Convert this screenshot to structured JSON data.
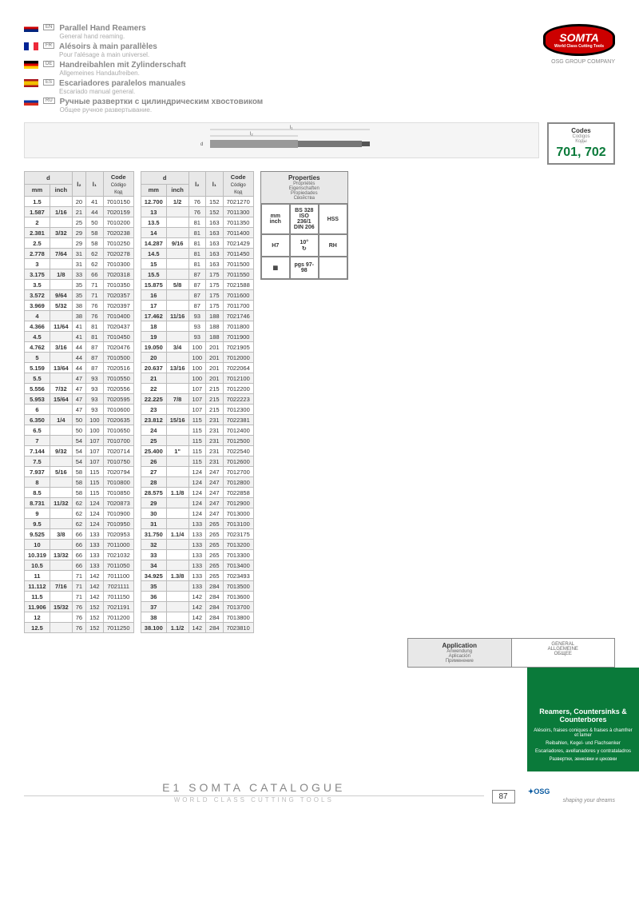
{
  "langs": [
    {
      "flag": "en",
      "code": "EN",
      "t1": "Parallel Hand Reamers",
      "t2": "General hand reaming."
    },
    {
      "flag": "fr",
      "code": "FR",
      "t1": "Alésoirs à main parallèles",
      "t2": "Pour l'alésage à main universel."
    },
    {
      "flag": "de",
      "code": "DE",
      "t1": "Handreibahlen mit Zylinderschaft",
      "t2": "Allgemeines Handaufreiben."
    },
    {
      "flag": "es",
      "code": "ES",
      "t1": "Escariadores paralelos manuales",
      "t2": "Escariado manual general."
    },
    {
      "flag": "ru",
      "code": "RU",
      "t1": "Ручные развертки с цилиндрическим хвостовиком",
      "t2": "Общее ручное развертывание."
    }
  ],
  "logo": {
    "name": "SOMTA",
    "sub": "World Class Cutting Tools",
    "osg": "OSG GROUP COMPANY"
  },
  "codes": {
    "lbl": "Codes",
    "subs": [
      "Codigos",
      "Коды"
    ],
    "val": "701, 702"
  },
  "thead": {
    "d": "d",
    "mm": "mm",
    "inch": "inch",
    "l2": "l₂",
    "l1": "l₁",
    "code": "Code",
    "code_subs": [
      "Código",
      "Код"
    ]
  },
  "table1": [
    [
      "1.5",
      "",
      "20",
      "41",
      "7010150"
    ],
    [
      "1.587",
      "1/16",
      "21",
      "44",
      "7020159"
    ],
    [
      "2",
      "",
      "25",
      "50",
      "7010200"
    ],
    [
      "2.381",
      "3/32",
      "29",
      "58",
      "7020238"
    ],
    [
      "2.5",
      "",
      "29",
      "58",
      "7010250"
    ],
    [
      "2.778",
      "7/64",
      "31",
      "62",
      "7020278"
    ],
    [
      "3",
      "",
      "31",
      "62",
      "7010300"
    ],
    [
      "3.175",
      "1/8",
      "33",
      "66",
      "7020318"
    ],
    [
      "3.5",
      "",
      "35",
      "71",
      "7010350"
    ],
    [
      "3.572",
      "9/64",
      "35",
      "71",
      "7020357"
    ],
    [
      "3.969",
      "5/32",
      "38",
      "76",
      "7020397"
    ],
    [
      "4",
      "",
      "38",
      "76",
      "7010400"
    ],
    [
      "4.366",
      "11/64",
      "41",
      "81",
      "7020437"
    ],
    [
      "4.5",
      "",
      "41",
      "81",
      "7010450"
    ],
    [
      "4.762",
      "3/16",
      "44",
      "87",
      "7020476"
    ],
    [
      "5",
      "",
      "44",
      "87",
      "7010500"
    ],
    [
      "5.159",
      "13/64",
      "44",
      "87",
      "7020516"
    ],
    [
      "5.5",
      "",
      "47",
      "93",
      "7010550"
    ],
    [
      "5.556",
      "7/32",
      "47",
      "93",
      "7020556"
    ],
    [
      "5.953",
      "15/64",
      "47",
      "93",
      "7020595"
    ],
    [
      "6",
      "",
      "47",
      "93",
      "7010600"
    ],
    [
      "6.350",
      "1/4",
      "50",
      "100",
      "7020635"
    ],
    [
      "6.5",
      "",
      "50",
      "100",
      "7010650"
    ],
    [
      "7",
      "",
      "54",
      "107",
      "7010700"
    ],
    [
      "7.144",
      "9/32",
      "54",
      "107",
      "7020714"
    ],
    [
      "7.5",
      "",
      "54",
      "107",
      "7010750"
    ],
    [
      "7.937",
      "5/16",
      "58",
      "115",
      "7020794"
    ],
    [
      "8",
      "",
      "58",
      "115",
      "7010800"
    ],
    [
      "8.5",
      "",
      "58",
      "115",
      "7010850"
    ],
    [
      "8.731",
      "11/32",
      "62",
      "124",
      "7020873"
    ],
    [
      "9",
      "",
      "62",
      "124",
      "7010900"
    ],
    [
      "9.5",
      "",
      "62",
      "124",
      "7010950"
    ],
    [
      "9.525",
      "3/8",
      "66",
      "133",
      "7020953"
    ],
    [
      "10",
      "",
      "66",
      "133",
      "7011000"
    ],
    [
      "10.319",
      "13/32",
      "66",
      "133",
      "7021032"
    ],
    [
      "10.5",
      "",
      "66",
      "133",
      "7011050"
    ],
    [
      "11",
      "",
      "71",
      "142",
      "7011100"
    ],
    [
      "11.112",
      "7/16",
      "71",
      "142",
      "7021111"
    ],
    [
      "11.5",
      "",
      "71",
      "142",
      "7011150"
    ],
    [
      "11.906",
      "15/32",
      "76",
      "152",
      "7021191"
    ],
    [
      "12",
      "",
      "76",
      "152",
      "7011200"
    ],
    [
      "12.5",
      "",
      "76",
      "152",
      "7011250"
    ]
  ],
  "table2": [
    [
      "12.700",
      "1/2",
      "76",
      "152",
      "7021270"
    ],
    [
      "13",
      "",
      "76",
      "152",
      "7011300"
    ],
    [
      "13.5",
      "",
      "81",
      "163",
      "7011350"
    ],
    [
      "14",
      "",
      "81",
      "163",
      "7011400"
    ],
    [
      "14.287",
      "9/16",
      "81",
      "163",
      "7021429"
    ],
    [
      "14.5",
      "",
      "81",
      "163",
      "7011450"
    ],
    [
      "15",
      "",
      "81",
      "163",
      "7011500"
    ],
    [
      "15.5",
      "",
      "87",
      "175",
      "7011550"
    ],
    [
      "15.875",
      "5/8",
      "87",
      "175",
      "7021588"
    ],
    [
      "16",
      "",
      "87",
      "175",
      "7011600"
    ],
    [
      "17",
      "",
      "87",
      "175",
      "7011700"
    ],
    [
      "17.462",
      "11/16",
      "93",
      "188",
      "7021746"
    ],
    [
      "18",
      "",
      "93",
      "188",
      "7011800"
    ],
    [
      "19",
      "",
      "93",
      "188",
      "7011900"
    ],
    [
      "19.050",
      "3/4",
      "100",
      "201",
      "7021905"
    ],
    [
      "20",
      "",
      "100",
      "201",
      "7012000"
    ],
    [
      "20.637",
      "13/16",
      "100",
      "201",
      "7022064"
    ],
    [
      "21",
      "",
      "100",
      "201",
      "7012100"
    ],
    [
      "22",
      "",
      "107",
      "215",
      "7012200"
    ],
    [
      "22.225",
      "7/8",
      "107",
      "215",
      "7022223"
    ],
    [
      "23",
      "",
      "107",
      "215",
      "7012300"
    ],
    [
      "23.812",
      "15/16",
      "115",
      "231",
      "7022381"
    ],
    [
      "24",
      "",
      "115",
      "231",
      "7012400"
    ],
    [
      "25",
      "",
      "115",
      "231",
      "7012500"
    ],
    [
      "25.400",
      "1\"",
      "115",
      "231",
      "7022540"
    ],
    [
      "26",
      "",
      "115",
      "231",
      "7012600"
    ],
    [
      "27",
      "",
      "124",
      "247",
      "7012700"
    ],
    [
      "28",
      "",
      "124",
      "247",
      "7012800"
    ],
    [
      "28.575",
      "1.1/8",
      "124",
      "247",
      "7022858"
    ],
    [
      "29",
      "",
      "124",
      "247",
      "7012900"
    ],
    [
      "30",
      "",
      "124",
      "247",
      "7013000"
    ],
    [
      "31",
      "",
      "133",
      "265",
      "7013100"
    ],
    [
      "31.750",
      "1.1/4",
      "133",
      "265",
      "7023175"
    ],
    [
      "32",
      "",
      "133",
      "265",
      "7013200"
    ],
    [
      "33",
      "",
      "133",
      "265",
      "7013300"
    ],
    [
      "34",
      "",
      "133",
      "265",
      "7013400"
    ],
    [
      "34.925",
      "1.3/8",
      "133",
      "265",
      "7023493"
    ],
    [
      "35",
      "",
      "133",
      "284",
      "7013500"
    ],
    [
      "36",
      "",
      "142",
      "284",
      "7013600"
    ],
    [
      "37",
      "",
      "142",
      "284",
      "7013700"
    ],
    [
      "38",
      "",
      "142",
      "284",
      "7013800"
    ],
    [
      "38.100",
      "1.1/2",
      "142",
      "284",
      "7023810"
    ]
  ],
  "props": {
    "hdr": "Properties",
    "subs": [
      "Propriétés",
      "Eigenschaften",
      "Propiedades",
      "Свойства"
    ],
    "cells": [
      [
        "mm",
        "inch"
      ],
      [
        "BS 328",
        "ISO",
        "236/1",
        "DIN 206"
      ],
      [
        "HSS"
      ],
      [
        "H7"
      ],
      [
        "10°",
        "↻"
      ],
      [
        "RH"
      ],
      [
        "▦"
      ],
      [
        "pgs 97-98"
      ],
      [
        ""
      ]
    ]
  },
  "app": {
    "lbl": "Application",
    "subs": [
      "Anwendung",
      "Aplicación",
      "Применение"
    ],
    "val": [
      "GENERAL",
      "ALLGEMEINE",
      "ОБЩЕЕ"
    ]
  },
  "footer": {
    "c1": "E1 SOMTA CATALOGUE",
    "c2": "WORLD CLASS CUTTING TOOLS",
    "page": "87",
    "tag": "shaping your dreams"
  },
  "banner": {
    "t": "Reamers, Countersinks & Counterbores",
    "s": [
      "Alésoirs, fraises coniques & fraises à chamfrer et lamer",
      "Reibahlen, Kegel- und Flachsenker",
      "Escariadores, avellanadores y contrataladros",
      "Развертки, зенковки и цековки"
    ]
  }
}
